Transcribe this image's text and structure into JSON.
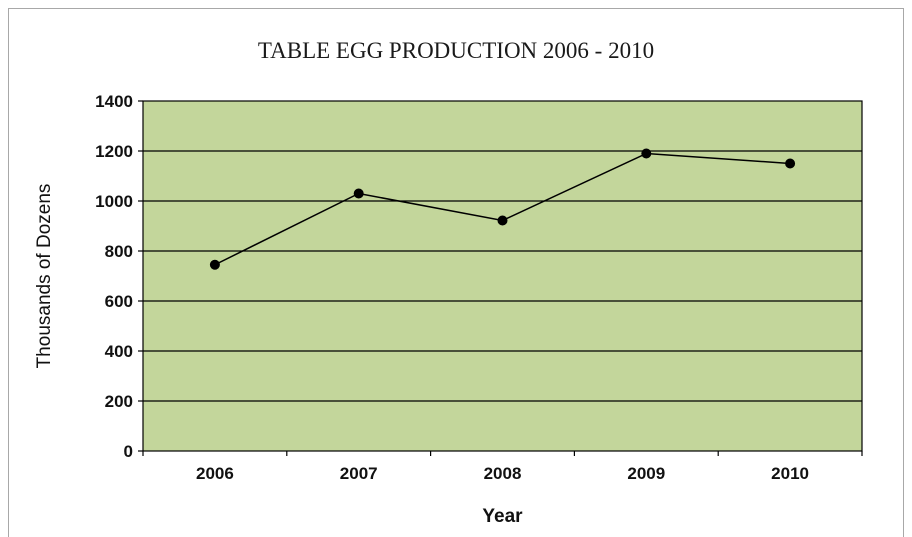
{
  "chart_data": {
    "type": "line",
    "title": "TABLE EGG PRODUCTION 2006 - 2010",
    "xlabel": "Year",
    "ylabel": "Thousands of Dozens",
    "categories": [
      "2006",
      "2007",
      "2008",
      "2009",
      "2010"
    ],
    "series": [
      {
        "values": [
          745,
          1030,
          922,
          1190,
          1150
        ]
      }
    ],
    "ylim": [
      0,
      1400
    ],
    "yticks": [
      "0",
      "200",
      "400",
      "600",
      "800",
      "1000",
      "1200",
      "1400"
    ],
    "grid": true,
    "legend": "none",
    "colors": {
      "plot_background": "#c3d69b",
      "gridline": "#000000",
      "line": "#000000",
      "marker": "#000000"
    }
  }
}
